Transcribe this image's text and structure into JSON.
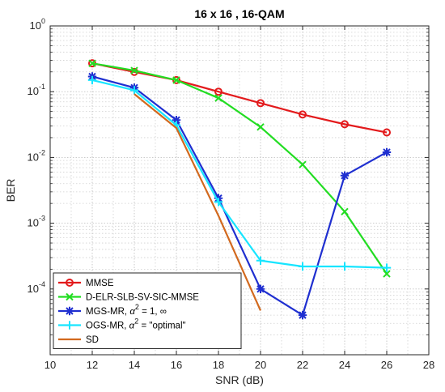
{
  "chart_data": {
    "type": "line",
    "title": "16 x 16 , 16-QAM",
    "xlabel": "SNR (dB)",
    "ylabel": "BER",
    "xlim": [
      10,
      28
    ],
    "ylim_log10": [
      -5,
      0
    ],
    "y_scale": "log",
    "grid": true,
    "minor_grid": true,
    "legend_position": "bottom-left",
    "x_ticks": [
      10,
      12,
      14,
      16,
      18,
      20,
      22,
      24,
      26,
      28
    ],
    "x_tick_labels": [
      "10",
      "12",
      "14",
      "16",
      "18",
      "20",
      "22",
      "24",
      "26",
      "28"
    ],
    "y_ticks": [
      0.0001,
      0.001,
      0.01,
      0.1,
      1
    ],
    "y_tick_labels": [
      {
        "base": "10",
        "exp": "-4"
      },
      {
        "base": "10",
        "exp": "-3"
      },
      {
        "base": "10",
        "exp": "-2"
      },
      {
        "base": "10",
        "exp": "-1"
      },
      {
        "base": "10",
        "exp": "0"
      }
    ],
    "series": [
      {
        "name": "MMSE",
        "color": "#e31a1c",
        "marker": "circle",
        "x": [
          12,
          14,
          16,
          18,
          20,
          22,
          24,
          26
        ],
        "y": [
          0.27,
          0.2,
          0.15,
          0.1,
          0.067,
          0.045,
          0.032,
          0.024
        ]
      },
      {
        "name": "D-ELR-SLB-SV-SIC-MMSE",
        "color": "#22dd22",
        "marker": "x",
        "x": [
          12,
          14,
          16,
          18,
          20,
          22,
          24,
          26
        ],
        "y": [
          0.27,
          0.21,
          0.15,
          0.08,
          0.029,
          0.0078,
          0.0015,
          0.00017
        ]
      },
      {
        "name_text": "MGS-MR, ",
        "name_math": "α",
        "name_sup": "2",
        "name_tail": " = 1, ∞",
        "color": "#1f2fd0",
        "marker": "asterisk",
        "x": [
          12,
          14,
          16,
          18,
          20,
          22,
          24,
          26
        ],
        "y": [
          0.17,
          0.115,
          0.037,
          0.0024,
          0.0001,
          4e-05,
          0.0053,
          0.012
        ]
      },
      {
        "name_text": "OGS-MR, ",
        "name_math": "α",
        "name_sup": "2",
        "name_tail": " = \"optimal\"",
        "color": "#17e5ff",
        "marker": "plus",
        "x": [
          12,
          14,
          16,
          18,
          20,
          22,
          24,
          26
        ],
        "y": [
          0.15,
          0.105,
          0.031,
          0.0021,
          0.00027,
          0.00022,
          0.00022,
          0.00021
        ]
      },
      {
        "name": "SD",
        "color": "#d2691e",
        "marker": "none",
        "x": [
          14,
          16,
          18,
          20
        ],
        "y": [
          0.092,
          0.028,
          0.0013,
          4.7e-05
        ]
      }
    ]
  }
}
